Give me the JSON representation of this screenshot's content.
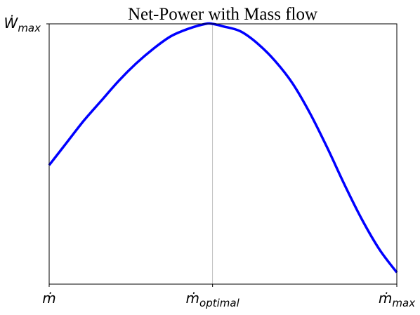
{
  "chart_data": {
    "type": "line",
    "title": "Net-Power with Mass flow",
    "xlabel": "",
    "ylabel": "",
    "xlim": [
      0,
      1
    ],
    "ylim": [
      -0.05,
      1.0
    ],
    "grid": "major ticks only",
    "line_color": "#0000ff",
    "grid_color": "#b0b0b0",
    "x_ticks": [
      {
        "value": 0.0,
        "main": "ṁ",
        "sub": ""
      },
      {
        "value": 0.47,
        "main": "ṁ",
        "sub": "optimal"
      },
      {
        "value": 1.0,
        "main": "ṁ",
        "sub": "max"
      }
    ],
    "y_ticks": [
      {
        "value": 1.0,
        "main": "Ẇ",
        "sub": "max"
      }
    ],
    "series": [
      {
        "x": [
          0.0,
          0.05,
          0.1,
          0.15,
          0.2,
          0.25,
          0.3,
          0.35,
          0.4,
          0.45,
          0.47,
          0.5,
          0.55,
          0.6,
          0.65,
          0.7,
          0.75,
          0.8,
          0.85,
          0.9,
          0.95,
          1.0
        ],
        "y": [
          0.43,
          0.52,
          0.61,
          0.69,
          0.77,
          0.84,
          0.9,
          0.95,
          0.98,
          1.0,
          1.0,
          0.99,
          0.97,
          0.92,
          0.85,
          0.76,
          0.64,
          0.5,
          0.35,
          0.21,
          0.09,
          -0.003
        ]
      }
    ]
  }
}
